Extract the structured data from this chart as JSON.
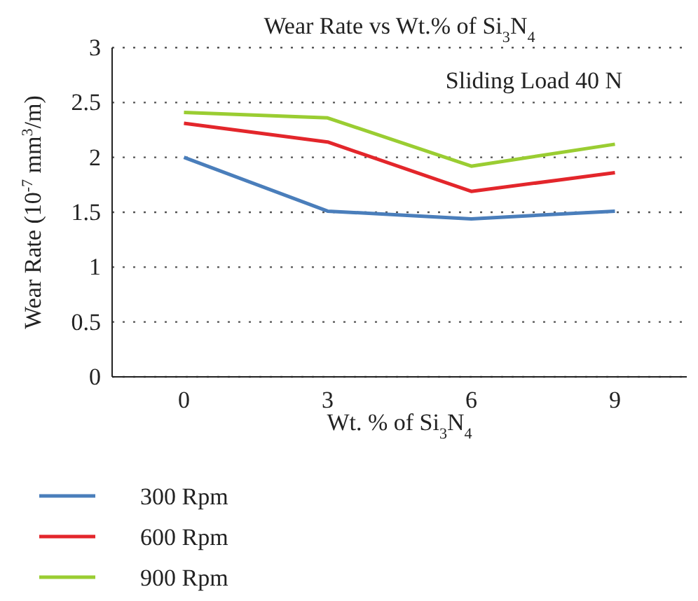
{
  "chart_data": {
    "type": "line",
    "title": "Wear Rate vs Wt.% of Si$_{3}$N$_{4}$",
    "xlabel": "Wt. % of Si$_{3}$N$_{4}$",
    "ylabel": "Wear Rate (10$^{-7}$ mm$^{3}$/m)",
    "annotations": [
      "Sliding Load 40 N"
    ],
    "categories": [
      "0",
      "3",
      "6",
      "9"
    ],
    "series": [
      {
        "name": "300 Rpm",
        "color": "#4a7ebb",
        "values": [
          2.0,
          1.51,
          1.44,
          1.51
        ]
      },
      {
        "name": "600 Rpm",
        "color": "#e3262b",
        "values": [
          2.31,
          2.14,
          1.69,
          1.86
        ]
      },
      {
        "name": "900 Rpm",
        "color": "#9acd32",
        "values": [
          2.41,
          2.36,
          1.92,
          2.12
        ]
      }
    ],
    "ylim": [
      0,
      3
    ],
    "yticks": [
      0,
      0.5,
      1,
      1.5,
      2,
      2.5,
      3
    ],
    "grid": "y",
    "legend": "bottom left",
    "marker": "none",
    "line_style": "solid"
  }
}
